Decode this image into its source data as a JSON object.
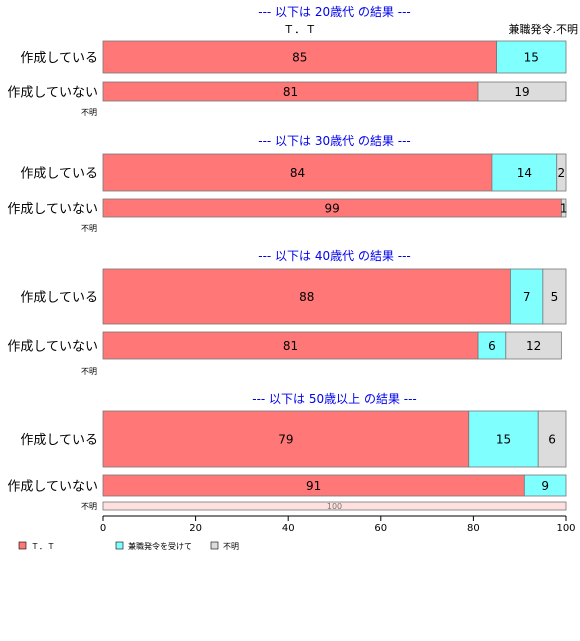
{
  "colors": {
    "tt": "#ff7777",
    "kenshoku": "#80ffff",
    "fumei": "#dcdcdc",
    "fumei_light": "#ffe0e0",
    "title": "#0000ee",
    "bar_stroke": "#777777"
  },
  "chart_data": {
    "type": "bar",
    "orientation": "horizontal",
    "stacked": true,
    "xlim": [
      0,
      100
    ],
    "x_ticks": [
      "0",
      "20",
      "40",
      "60",
      "80",
      "100"
    ],
    "header_labels": {
      "tt": "Ｔ．Ｔ",
      "kenshoku": "兼職発令.不明"
    },
    "legend": [
      {
        "name": "Ｔ．Ｔ",
        "color_key": "tt"
      },
      {
        "name": "兼職発令を受けて",
        "color_key": "kenshoku"
      },
      {
        "name": "不明",
        "color_key": "fumei"
      }
    ],
    "panels": [
      {
        "title": "--- 以下は 20歳代 の結果 ---",
        "rows": [
          {
            "label": "作成している",
            "values": [
              85,
              15,
              0
            ]
          },
          {
            "label": "作成していない",
            "values": [
              81,
              0,
              19
            ]
          },
          {
            "label": "不明",
            "values": []
          }
        ]
      },
      {
        "title": "--- 以下は 30歳代 の結果 ---",
        "rows": [
          {
            "label": "作成している",
            "values": [
              84,
              14,
              2
            ]
          },
          {
            "label": "作成していない",
            "values": [
              99,
              0,
              1
            ]
          },
          {
            "label": "不明",
            "values": []
          }
        ]
      },
      {
        "title": "--- 以下は 40歳代 の結果 ---",
        "rows": [
          {
            "label": "作成している",
            "values": [
              88,
              7,
              5
            ]
          },
          {
            "label": "作成していない",
            "values": [
              81,
              6,
              12
            ]
          },
          {
            "label": "不明",
            "values": []
          }
        ]
      },
      {
        "title": "--- 以下は 50歳以上 の結果 ---",
        "rows": [
          {
            "label": "作成している",
            "values": [
              79,
              15,
              6
            ]
          },
          {
            "label": "作成していない",
            "values": [
              91,
              9,
              0
            ]
          },
          {
            "label": "不明",
            "values": [
              0,
              0,
              100
            ],
            "light": true
          }
        ]
      }
    ]
  }
}
